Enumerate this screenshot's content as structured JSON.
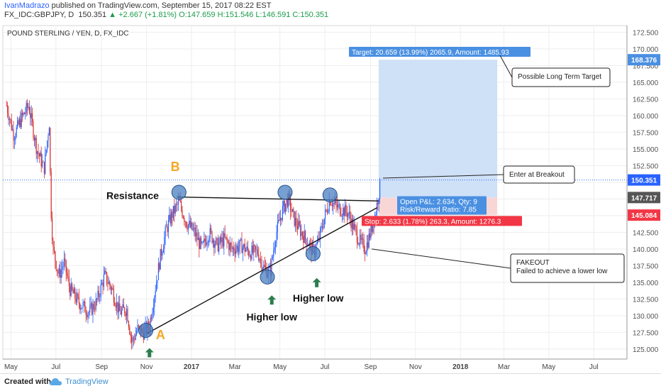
{
  "header": {
    "author": "IvanMadrazo",
    "published": " published on TradingView.com, September 15, 2017 08:22 EST",
    "symbol": "FX_IDC:GBPJPY, D",
    "last": "150.351",
    "change": "+2.667 (+1.81%)",
    "open": "O:147.659",
    "high": "H:151.546",
    "low": "L:146.591",
    "close": "C:150.351"
  },
  "chart_data": {
    "type": "candlestick",
    "title": "POUND STERLING / YEN, D, FX_IDC",
    "ylim": [
      123.5,
      173.5
    ],
    "y_ticks": [
      "125.000",
      "127.500",
      "130.000",
      "132.500",
      "135.000",
      "137.500",
      "140.000",
      "142.500",
      "145.000",
      "147.500",
      "150.000",
      "152.500",
      "155.000",
      "157.500",
      "160.000",
      "162.500",
      "165.000",
      "167.500",
      "170.000",
      "172.500"
    ],
    "x_ticks": [
      "May",
      "Jul",
      "Sep",
      "Nov",
      "2017",
      "Mar",
      "May",
      "Jul",
      "Sep",
      "Nov",
      "2018",
      "Mar",
      "May",
      "Jul"
    ],
    "price_points": [
      [
        "2016-04-25",
        161.5
      ],
      [
        "2016-05-05",
        157.0
      ],
      [
        "2016-05-15",
        159.5
      ],
      [
        "2016-05-25",
        161.5
      ],
      [
        "2016-06-05",
        155.0
      ],
      [
        "2016-06-15",
        152.0
      ],
      [
        "2016-06-22",
        159.0
      ],
      [
        "2016-06-24",
        147.0
      ],
      [
        "2016-06-27",
        140.0
      ],
      [
        "2016-07-05",
        136.0
      ],
      [
        "2016-07-12",
        138.0
      ],
      [
        "2016-07-20",
        134.0
      ],
      [
        "2016-08-01",
        132.0
      ],
      [
        "2016-08-15",
        130.5
      ],
      [
        "2016-08-25",
        132.0
      ],
      [
        "2016-09-05",
        136.0
      ],
      [
        "2016-09-15",
        134.0
      ],
      [
        "2016-09-25",
        130.5
      ],
      [
        "2016-10-05",
        131.0
      ],
      [
        "2016-10-12",
        126.0
      ],
      [
        "2016-10-20",
        128.0
      ],
      [
        "2016-10-28",
        127.5
      ],
      [
        "2016-11-05",
        128.5
      ],
      [
        "2016-11-12",
        133.5
      ],
      [
        "2016-11-20",
        139.0
      ],
      [
        "2016-11-28",
        143.0
      ],
      [
        "2016-12-05",
        145.0
      ],
      [
        "2016-12-15",
        147.0
      ],
      [
        "2016-12-25",
        144.0
      ],
      [
        "2017-01-05",
        142.5
      ],
      [
        "2017-01-15",
        140.0
      ],
      [
        "2017-01-25",
        142.5
      ],
      [
        "2017-02-05",
        140.5
      ],
      [
        "2017-02-15",
        141.5
      ],
      [
        "2017-02-25",
        140.0
      ],
      [
        "2017-03-10",
        140.5
      ],
      [
        "2017-03-20",
        139.5
      ],
      [
        "2017-04-01",
        139.5
      ],
      [
        "2017-04-10",
        137.0
      ],
      [
        "2017-04-18",
        136.5
      ],
      [
        "2017-04-25",
        142.0
      ],
      [
        "2017-05-05",
        146.0
      ],
      [
        "2017-05-12",
        147.5
      ],
      [
        "2017-05-20",
        144.5
      ],
      [
        "2017-05-30",
        142.5
      ],
      [
        "2017-06-08",
        141.0
      ],
      [
        "2017-06-15",
        139.5
      ],
      [
        "2017-06-22",
        141.0
      ],
      [
        "2017-07-01",
        145.0
      ],
      [
        "2017-07-08",
        147.5
      ],
      [
        "2017-07-15",
        146.5
      ],
      [
        "2017-07-22",
        146.0
      ],
      [
        "2017-08-01",
        145.5
      ],
      [
        "2017-08-10",
        143.0
      ],
      [
        "2017-08-18",
        141.0
      ],
      [
        "2017-08-25",
        140.0
      ],
      [
        "2017-09-01",
        142.5
      ],
      [
        "2017-09-08",
        145.5
      ],
      [
        "2017-09-15",
        150.351
      ]
    ],
    "lines": {
      "last_price": "150.351",
      "target_price": "168.376",
      "entry_price": "147.717",
      "stop_price": "145.084"
    },
    "annotations": {
      "target_box": "Target: 20.659 (13.99%) 2065.9, Amount: 1485.93",
      "pnl_box_line1": "Open P&L: 2.634, Qty: 9",
      "pnl_box_line2": "Risk/Reward Ratio: 7.85",
      "stop_box": "Stop: 2.633 (1.78%) 263.3, Amount: 1276.3",
      "resistance": "Resistance",
      "label_a": "A",
      "label_b": "B",
      "higher_low_1": "Higher low",
      "higher_low_2": "Higher low",
      "callout_target": "Possible Long Term Target",
      "callout_entry": "Enter at Breakout",
      "callout_fakeout_1": "FAKEOUT",
      "callout_fakeout_2": "Failed to achieve a  lower low"
    },
    "colors": {
      "up": "#2962ff",
      "down": "#d32f2f",
      "target_zone": "#cfe1f7",
      "stop_zone": "#f9d6d6",
      "target_label": "#4a90e2",
      "stop_label": "#f23645",
      "pnl_label": "#4a90e2",
      "point_marker": "#4a7fbf",
      "letter": "#f5a623",
      "arrow": "#2e7d4f"
    }
  },
  "footer": {
    "created": "Created with",
    "brand": "TradingView"
  }
}
